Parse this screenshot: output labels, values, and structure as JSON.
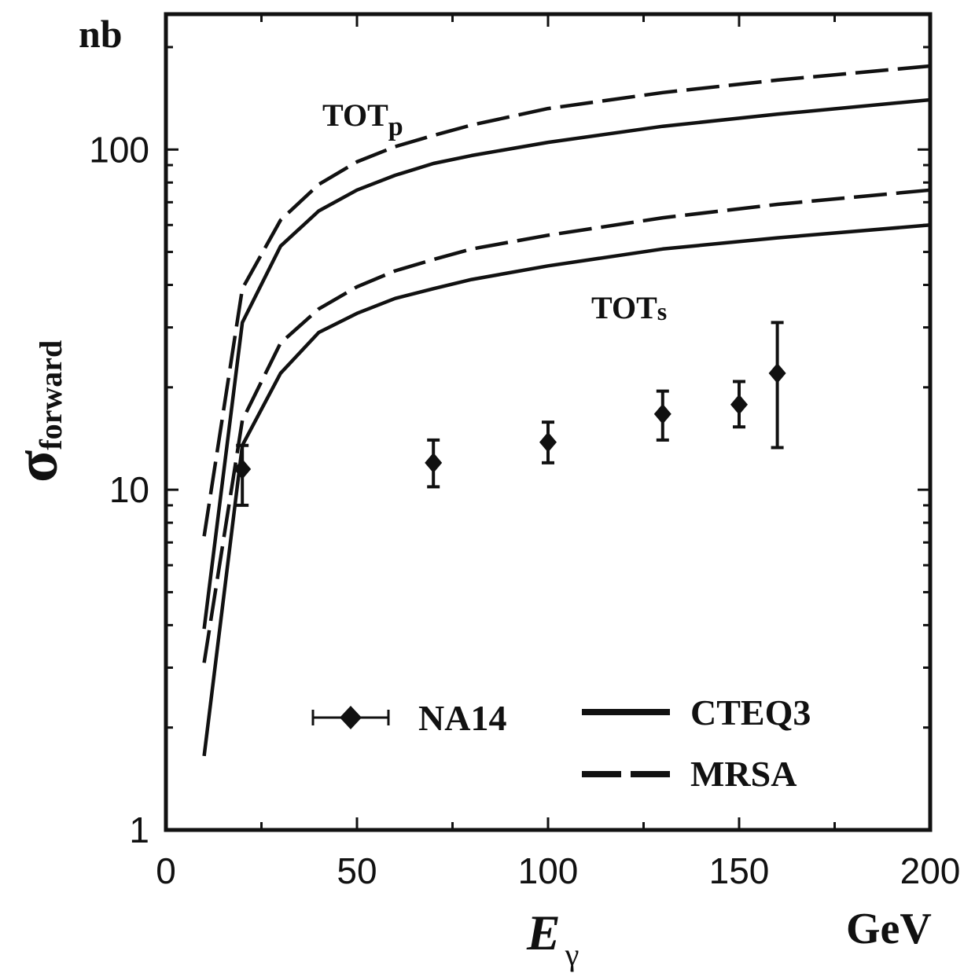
{
  "chart_data": {
    "type": "scatter",
    "title": "",
    "xlabel": "E",
    "xlabel_sub": "γ",
    "x_unit": "GeV",
    "ylabel": "σ",
    "ylabel_sub": "forward",
    "y_unit": "nb",
    "xlim": [
      0,
      200
    ],
    "ylim": [
      1,
      250
    ],
    "yscale": "log",
    "grid": false,
    "legend_position": "bottom",
    "x_ticks": [
      "0",
      "50",
      "100",
      "150",
      "200"
    ],
    "y_ticks": [
      "1",
      "10",
      "100"
    ],
    "annotations": [
      {
        "text": "TOT",
        "sub": "p",
        "near": "upper curves"
      },
      {
        "text": "TOT",
        "sub": "s",
        "near": "lower curves"
      }
    ],
    "legend": [
      {
        "label": "NA14",
        "marker": "diamond-errorbar"
      },
      {
        "label": "CTEQ3",
        "style": "solid"
      },
      {
        "label": "MRSA",
        "style": "dashed"
      }
    ],
    "series": [
      {
        "name": "NA14",
        "kind": "points",
        "x": [
          20,
          70,
          100,
          130,
          150,
          160
        ],
        "y": [
          11.5,
          12.0,
          13.8,
          16.7,
          17.8,
          22.0
        ],
        "y_low": [
          9.0,
          10.2,
          12.0,
          14.0,
          15.3,
          13.3
        ],
        "y_high": [
          13.5,
          14.0,
          15.8,
          19.5,
          20.8,
          31.0
        ]
      },
      {
        "name": "CTEQ3",
        "group": "TOTp",
        "style": "solid",
        "x": [
          10,
          20,
          30,
          40,
          50,
          60,
          70,
          80,
          100,
          130,
          160,
          200
        ],
        "y": [
          3.9,
          31,
          52,
          66,
          76,
          84,
          91,
          96,
          105,
          117,
          127,
          140
        ]
      },
      {
        "name": "MRSA",
        "group": "TOTp",
        "style": "dashed",
        "x": [
          10,
          20,
          30,
          40,
          50,
          60,
          70,
          80,
          100,
          130,
          160,
          200
        ],
        "y": [
          7.3,
          39,
          62,
          79,
          92,
          102,
          110,
          118,
          132,
          147,
          160,
          176
        ]
      },
      {
        "name": "CTEQ3",
        "group": "TOTs",
        "style": "solid",
        "x": [
          10,
          20,
          30,
          40,
          50,
          60,
          70,
          80,
          100,
          130,
          160,
          200
        ],
        "y": [
          1.65,
          13.5,
          22,
          29,
          33,
          36.5,
          39,
          41.5,
          45.5,
          51,
          55,
          60
        ]
      },
      {
        "name": "MRSA",
        "group": "TOTs",
        "style": "dashed",
        "x": [
          10,
          20,
          30,
          40,
          50,
          60,
          70,
          80,
          100,
          130,
          160,
          200
        ],
        "y": [
          3.1,
          16,
          27,
          34,
          39.5,
          44,
          47.5,
          51,
          56,
          63,
          69,
          76
        ]
      }
    ]
  }
}
